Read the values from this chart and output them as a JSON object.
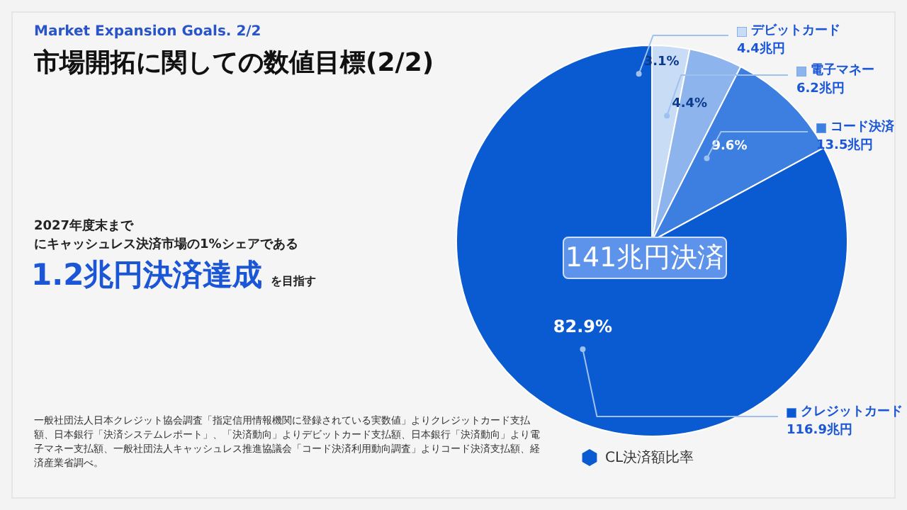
{
  "chart_data": {
    "type": "pie",
    "subtitle": "Market Expansion Goals. 2/2",
    "title": "市場開拓に関しての数値目標(2/2)",
    "categories": [
      "デビットカード",
      "電子マネー",
      "コード決済",
      "クレジットカード"
    ],
    "values": [
      3.1,
      4.4,
      9.6,
      82.9
    ],
    "colors": [
      "#c9dcf6",
      "#8db4ec",
      "#3c7fe0",
      "#0a5ad2"
    ],
    "value_labels": [
      "3.1%",
      "4.4%",
      "9.6%",
      "82.9%"
    ],
    "legend_title": "CL決済額比率",
    "legend": "right",
    "annotations": [
      {
        "text": "4.4兆円",
        "x": "デビットカード"
      },
      {
        "text": "6.2兆円",
        "x": "電子マネー"
      },
      {
        "text": "13.5兆円",
        "x": "コード決済"
      },
      {
        "text": "116.9兆円",
        "x": "クレジットカード"
      },
      "141兆円決済",
      "2027年度末まで",
      "にキャッシュレス決済市場の1%シェアである",
      "1.2兆円決済達成",
      "を目指す",
      "一般社団法人日本クレジット協会調査「指定信用情報機関に登録されている実数値」よりクレジットカード支払額、日本銀行「決済システムレポート」、「決済動向」よりデビットカード支払額、日本銀行「決済動向」より電子マネー支払額、一般社団法人キャッシュレス推進協議会「コード決済利用動向調査」よりコード決済支払額、経済産業省調べ。"
    ]
  }
}
